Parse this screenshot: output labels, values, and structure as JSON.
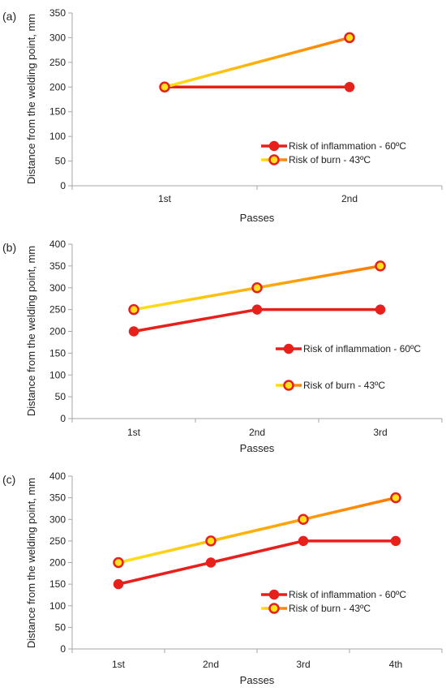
{
  "colors": {
    "inflammation": "#e8201c",
    "burn_start": "#ffe21a",
    "burn_end": "#ff7a00",
    "marker_fill_burn": "#ffe21a",
    "axis": "#a6a6a6"
  },
  "chart_data": [
    {
      "type": "line",
      "panel_label": "(a)",
      "categories": [
        "1st",
        "2nd"
      ],
      "xlabel": "Passes",
      "ylabel": "Distance from the welding point, mm",
      "ylim": [
        0,
        350
      ],
      "yticks": [
        0,
        50,
        100,
        150,
        200,
        250,
        300,
        350
      ],
      "grid": false,
      "legend_position": "bottom-right",
      "series": [
        {
          "name": "Risk of inflammation - 60ºC",
          "values": [
            200,
            200
          ]
        },
        {
          "name": "Risk of burn - 43ºC",
          "values": [
            200,
            300
          ]
        }
      ]
    },
    {
      "type": "line",
      "panel_label": "(b)",
      "categories": [
        "1st",
        "2nd",
        "3rd"
      ],
      "xlabel": "Passes",
      "ylabel": "Distance from the welding point, mm",
      "ylim": [
        0,
        400
      ],
      "yticks": [
        0,
        50,
        100,
        150,
        200,
        250,
        300,
        350,
        400
      ],
      "grid": false,
      "legend_position": "right",
      "series": [
        {
          "name": "Risk of inflammation - 60ºC",
          "values": [
            200,
            250,
            250
          ]
        },
        {
          "name": "Risk of burn - 43ºC",
          "values": [
            250,
            300,
            350
          ]
        }
      ]
    },
    {
      "type": "line",
      "panel_label": "(c)",
      "categories": [
        "1st",
        "2nd",
        "3rd",
        "4th"
      ],
      "xlabel": "Passes",
      "ylabel": "Distance from the welding point, mm",
      "ylim": [
        0,
        400
      ],
      "yticks": [
        0,
        50,
        100,
        150,
        200,
        250,
        300,
        350,
        400
      ],
      "grid": false,
      "legend_position": "bottom-right",
      "series": [
        {
          "name": "Risk of inflammation - 60ºC",
          "values": [
            150,
            200,
            250,
            250
          ]
        },
        {
          "name": "Risk of burn - 43ºC",
          "values": [
            200,
            250,
            300,
            350
          ]
        }
      ]
    }
  ]
}
